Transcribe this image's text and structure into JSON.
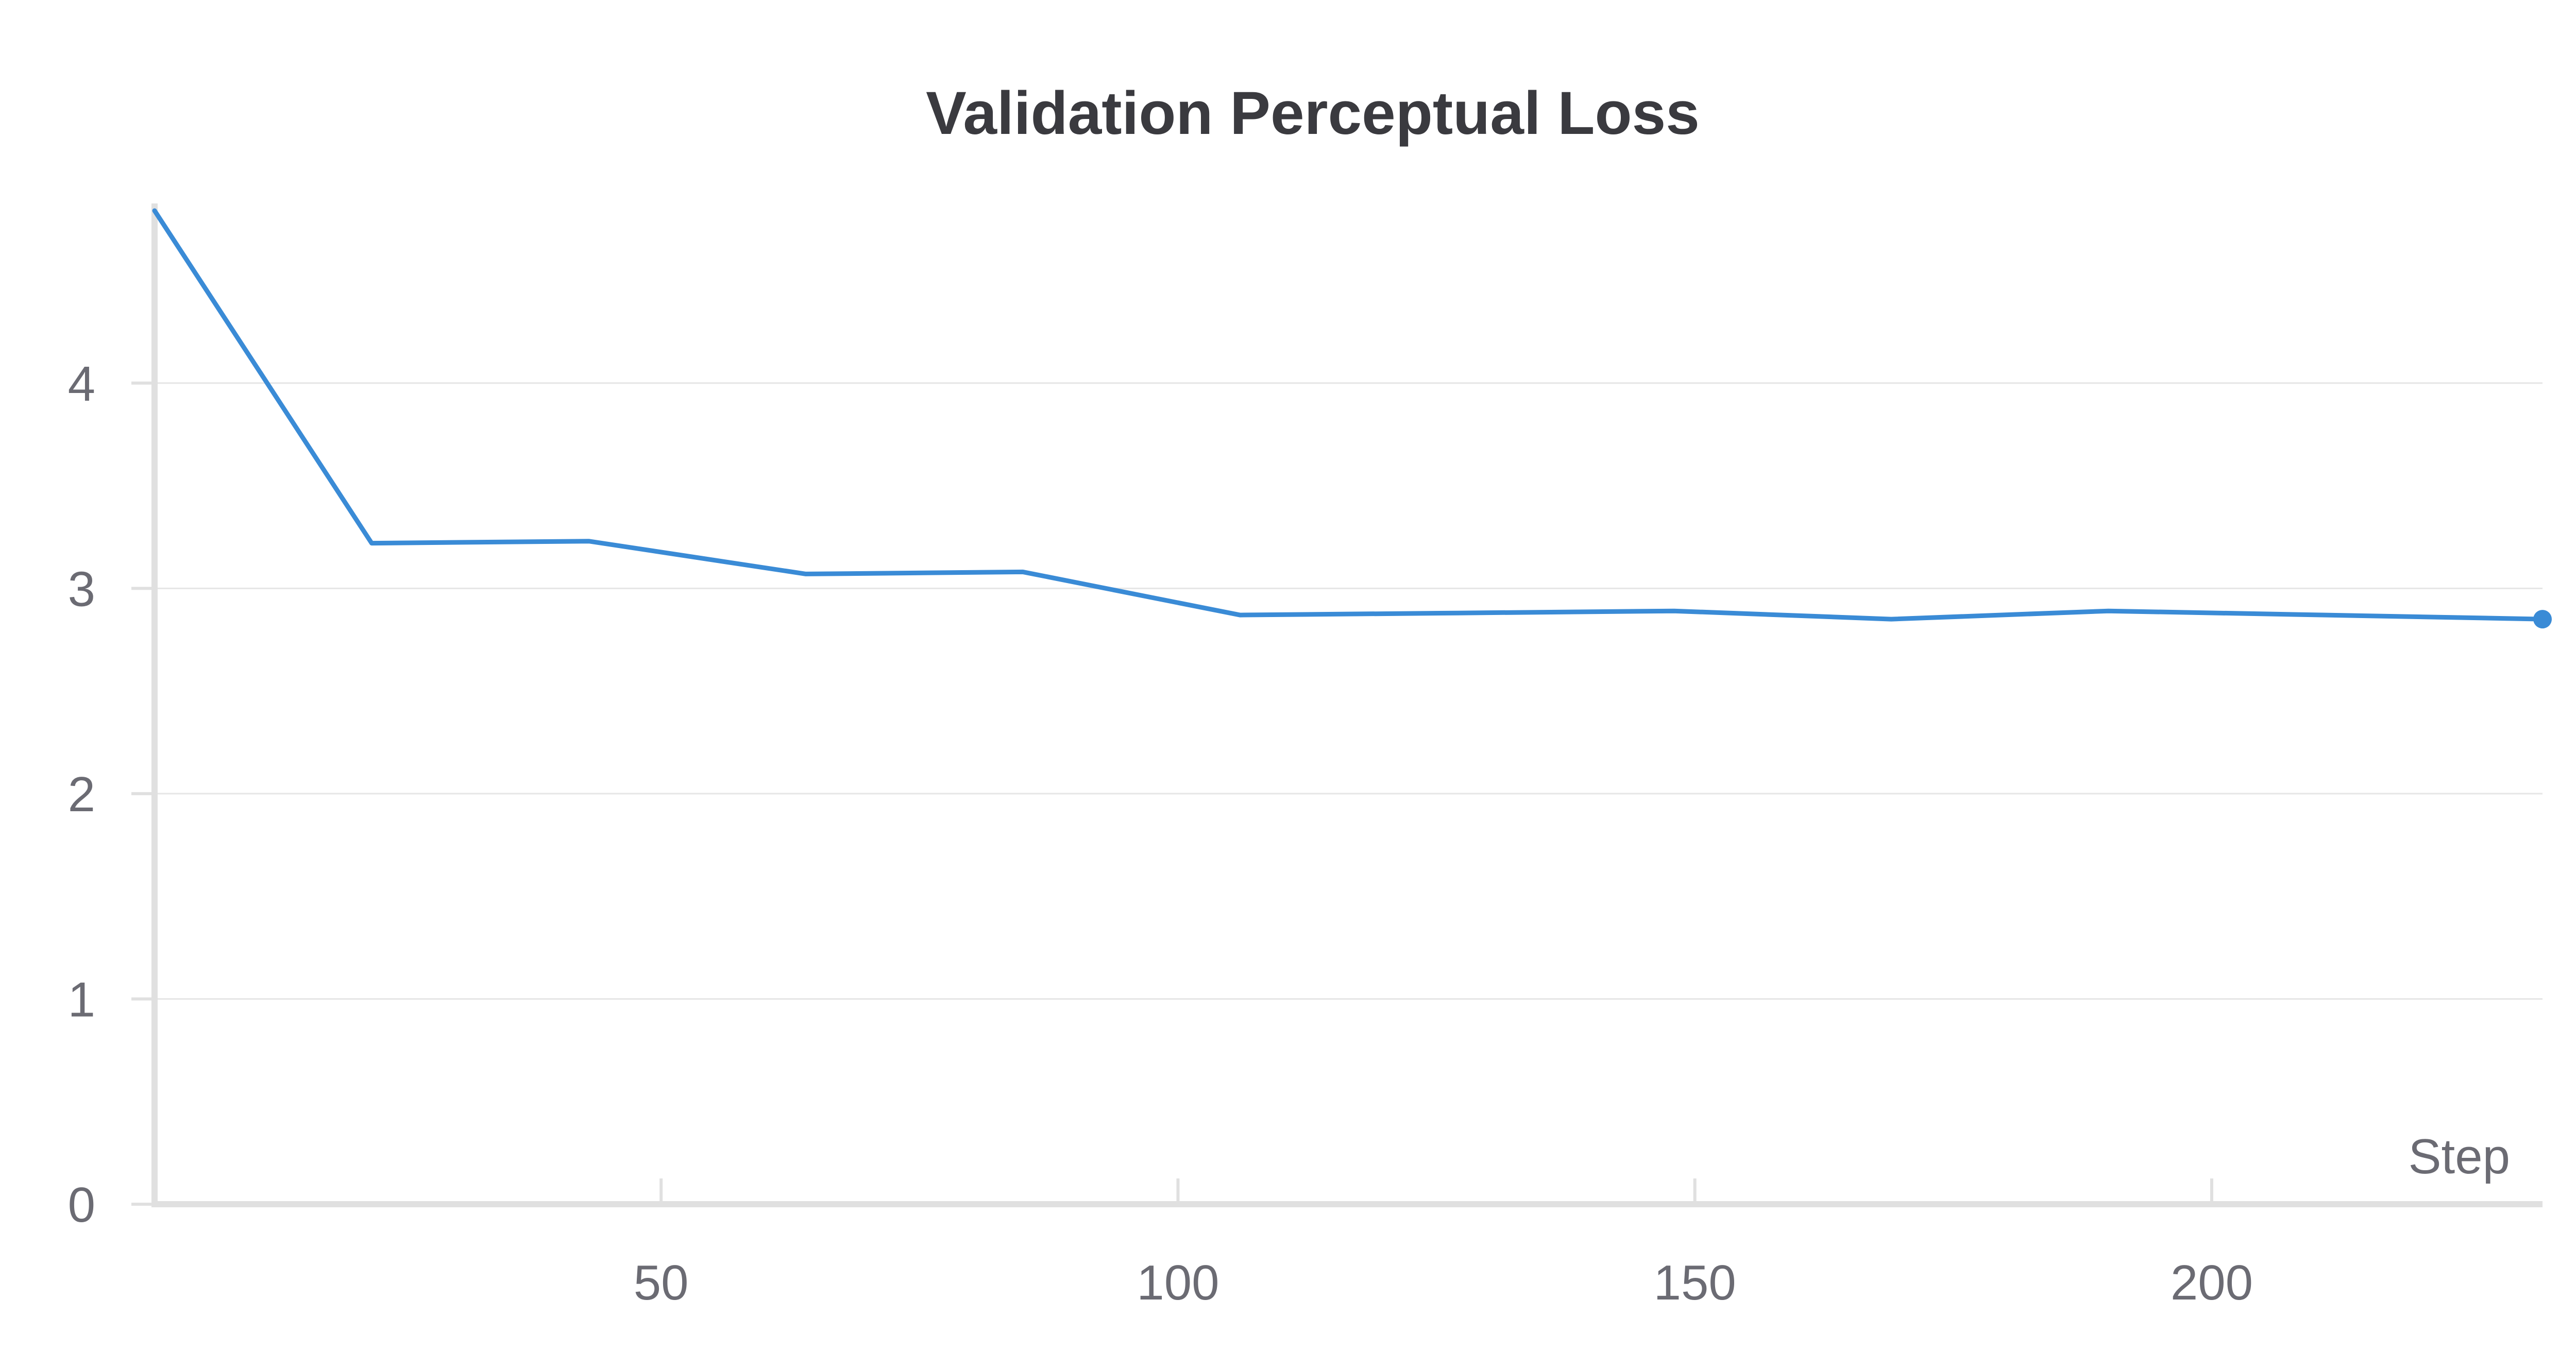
{
  "chart_data": {
    "type": "line",
    "title": "Validation Perceptual Loss",
    "xlabel": "Step",
    "ylabel": "",
    "xlim": [
      1,
      232
    ],
    "ylim": [
      0,
      4.85
    ],
    "x_ticks": [
      50,
      100,
      150,
      200
    ],
    "y_ticks": [
      0,
      1,
      2,
      3,
      4
    ],
    "grid": true,
    "legend": "none",
    "series": [
      {
        "color": "#3a8bd6",
        "x": [
          1,
          22,
          43,
          64,
          85,
          106,
          127,
          148,
          169,
          190,
          211,
          232
        ],
        "y": [
          4.84,
          3.22,
          3.23,
          3.07,
          3.08,
          2.87,
          2.88,
          2.89,
          2.85,
          2.89,
          2.87,
          2.85
        ]
      }
    ]
  }
}
